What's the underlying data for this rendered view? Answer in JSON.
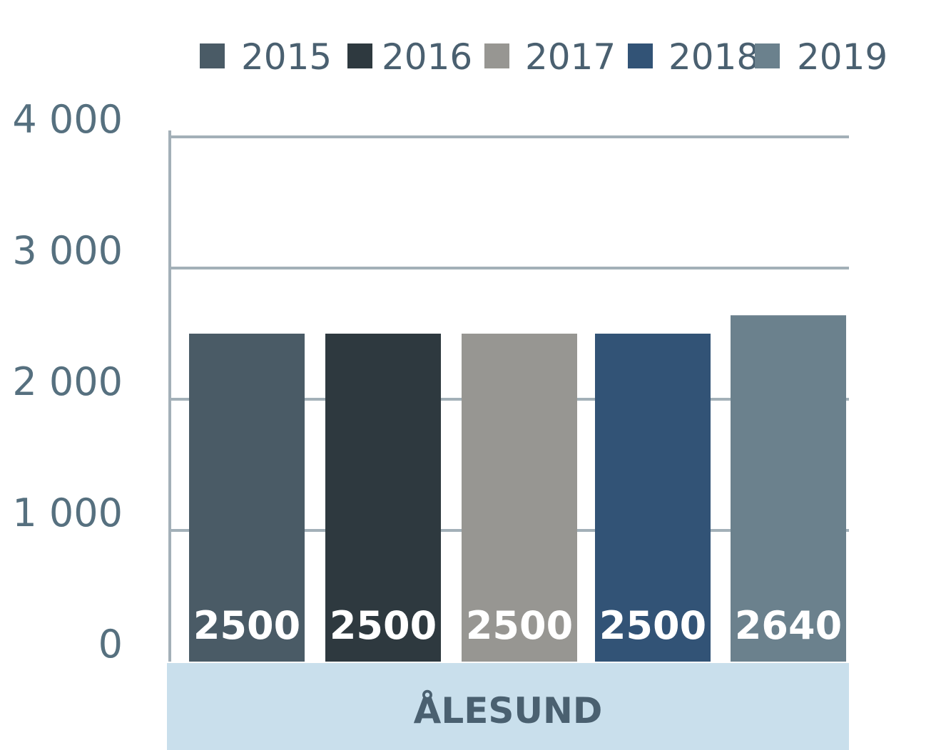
{
  "chart_data": {
    "type": "bar",
    "categories": [
      "ÅLESUND"
    ],
    "series": [
      {
        "name": "2015",
        "values": [
          2500
        ],
        "label": "2500",
        "color": "#4a5b66"
      },
      {
        "name": "2016",
        "values": [
          2500
        ],
        "label": "2500",
        "color": "#2e393f"
      },
      {
        "name": "2017",
        "values": [
          2500
        ],
        "label": "2500",
        "color": "#979692"
      },
      {
        "name": "2018",
        "values": [
          2500
        ],
        "label": "2500",
        "color": "#325376"
      },
      {
        "name": "2019",
        "values": [
          2640
        ],
        "label": "2640",
        "color": "#6b818d"
      }
    ],
    "yticks": [
      0,
      1000,
      2000,
      3000,
      4000
    ],
    "ytick_labels": [
      "0",
      "1 000",
      "2 000",
      "3 000",
      "4 000"
    ],
    "ylim": [
      0,
      4000
    ],
    "grid": true,
    "legend_position": "top",
    "axis_color": "#a3b0b8",
    "category_band_color": "#c9dfec",
    "tick_label_color": "#56707f"
  }
}
